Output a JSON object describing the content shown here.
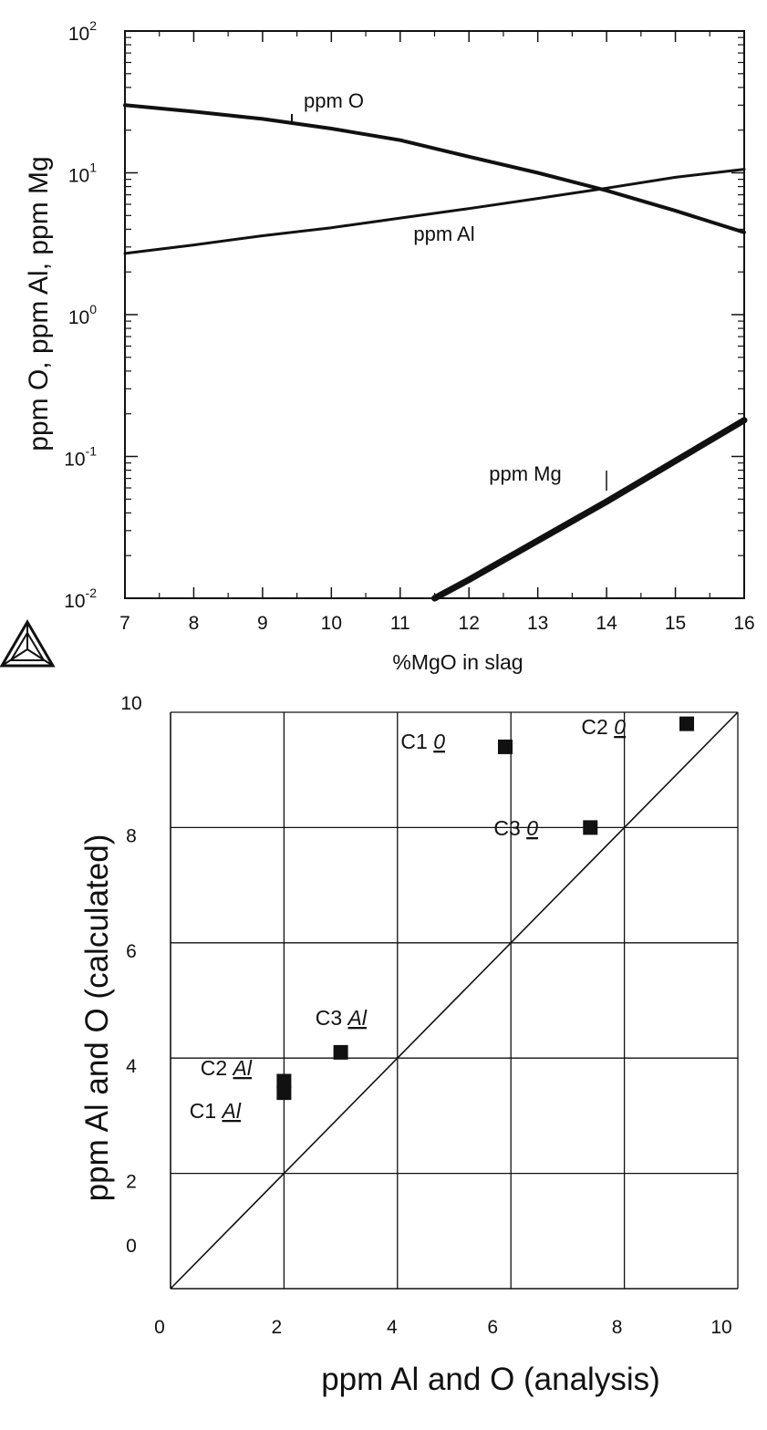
{
  "chart_data": [
    {
      "type": "line",
      "title": "",
      "xlabel": "%MgO in slag",
      "ylabel": "ppm O, ppm Al, ppm Mg",
      "xlim": [
        7,
        16
      ],
      "ylim": [
        0.01,
        100
      ],
      "yscale": "log",
      "grid": false,
      "x_ticks": [
        "7",
        "8",
        "9",
        "10",
        "11",
        "12",
        "13",
        "14",
        "15",
        "16"
      ],
      "y_ticks": [
        {
          "base": "10",
          "exp": "-2"
        },
        {
          "base": "10",
          "exp": "-1"
        },
        {
          "base": "10",
          "exp": "0"
        },
        {
          "base": "10",
          "exp": "1"
        },
        {
          "base": "10",
          "exp": "2"
        }
      ],
      "series": [
        {
          "name": "ppm O",
          "x": [
            7,
            8,
            9,
            10,
            11,
            12,
            13,
            14,
            15,
            16
          ],
          "y": [
            30,
            27,
            24,
            20.5,
            17,
            13,
            10,
            7.5,
            5.4,
            3.8
          ]
        },
        {
          "name": "ppm Al",
          "x": [
            7,
            8,
            9,
            10,
            11,
            12,
            13,
            14,
            15,
            16
          ],
          "y": [
            2.7,
            3.1,
            3.6,
            4.1,
            4.8,
            5.6,
            6.6,
            7.8,
            9.3,
            10.6
          ]
        },
        {
          "name": "ppm Mg",
          "x": [
            11.5,
            12,
            13,
            14,
            15,
            16
          ],
          "y": [
            0.01,
            0.0135,
            0.0255,
            0.048,
            0.093,
            0.18
          ]
        }
      ]
    },
    {
      "type": "scatter",
      "title": "",
      "xlabel": "ppm Al and O (analysis)",
      "ylabel": "ppm Al and O (calculated)",
      "xlim": [
        0,
        10
      ],
      "ylim": [
        0,
        10
      ],
      "grid": true,
      "x_ticks": [
        "0",
        "2",
        "4",
        "6",
        "8",
        "10"
      ],
      "y_ticks": [
        "0",
        "2",
        "4",
        "6",
        "8",
        "10"
      ],
      "reference_line": "y = x",
      "points": [
        {
          "label": "C1",
          "element": "0",
          "x": 5.9,
          "y": 9.4
        },
        {
          "label": "C2",
          "element": "0",
          "x": 9.1,
          "y": 9.8
        },
        {
          "label": "C3",
          "element": "0",
          "x": 7.4,
          "y": 8.0
        },
        {
          "label": "C3",
          "element": "Al",
          "x": 3.0,
          "y": 4.1
        },
        {
          "label": "C2",
          "element": "Al",
          "x": 2.0,
          "y": 3.6
        },
        {
          "label": "C1",
          "element": "Al",
          "x": 2.0,
          "y": 3.4
        }
      ]
    }
  ],
  "logo": {
    "name": "thermo-calc-triangle-logo"
  }
}
